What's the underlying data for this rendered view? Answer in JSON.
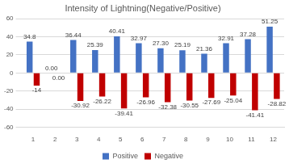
{
  "chart_data": {
    "type": "bar",
    "title": "Intensity of Lightning(Negative/Positive)",
    "categories": [
      "1",
      "2",
      "3",
      "4",
      "5",
      "6",
      "7",
      "8",
      "9",
      "10",
      "11",
      "12"
    ],
    "series": [
      {
        "name": "Positive",
        "color": "#4472c4",
        "values": [
          34.8,
          0,
          36.44,
          25.39,
          40.41,
          32.97,
          27.3,
          25.19,
          21.36,
          32.91,
          37.28,
          51.25
        ],
        "value_labels": [
          "34.8",
          "0.00",
          "36.44",
          "25.39",
          "40.41",
          "32.97",
          "27.30",
          "25.19",
          "21.36",
          "32.91",
          "37.28",
          "51.25"
        ]
      },
      {
        "name": "Negative",
        "color": "#c00000",
        "values": [
          -14,
          0,
          -30.92,
          -26.22,
          -39.41,
          -26.96,
          -32.38,
          -30.55,
          -27.69,
          -25.04,
          -41.41,
          -28.82
        ],
        "value_labels": [
          "-14",
          "0.00",
          "-30.92",
          "-26.22",
          "-39.41",
          "-26.96",
          "-32.38",
          "-30.55",
          "-27.69",
          "-25.04",
          "-41.41",
          "-28.82"
        ]
      }
    ],
    "ylim": [
      -60,
      60
    ],
    "yticks": [
      -60,
      -40,
      -20,
      0,
      20,
      40,
      60
    ],
    "grid": true,
    "legend": "bottom",
    "data_labels": true
  }
}
